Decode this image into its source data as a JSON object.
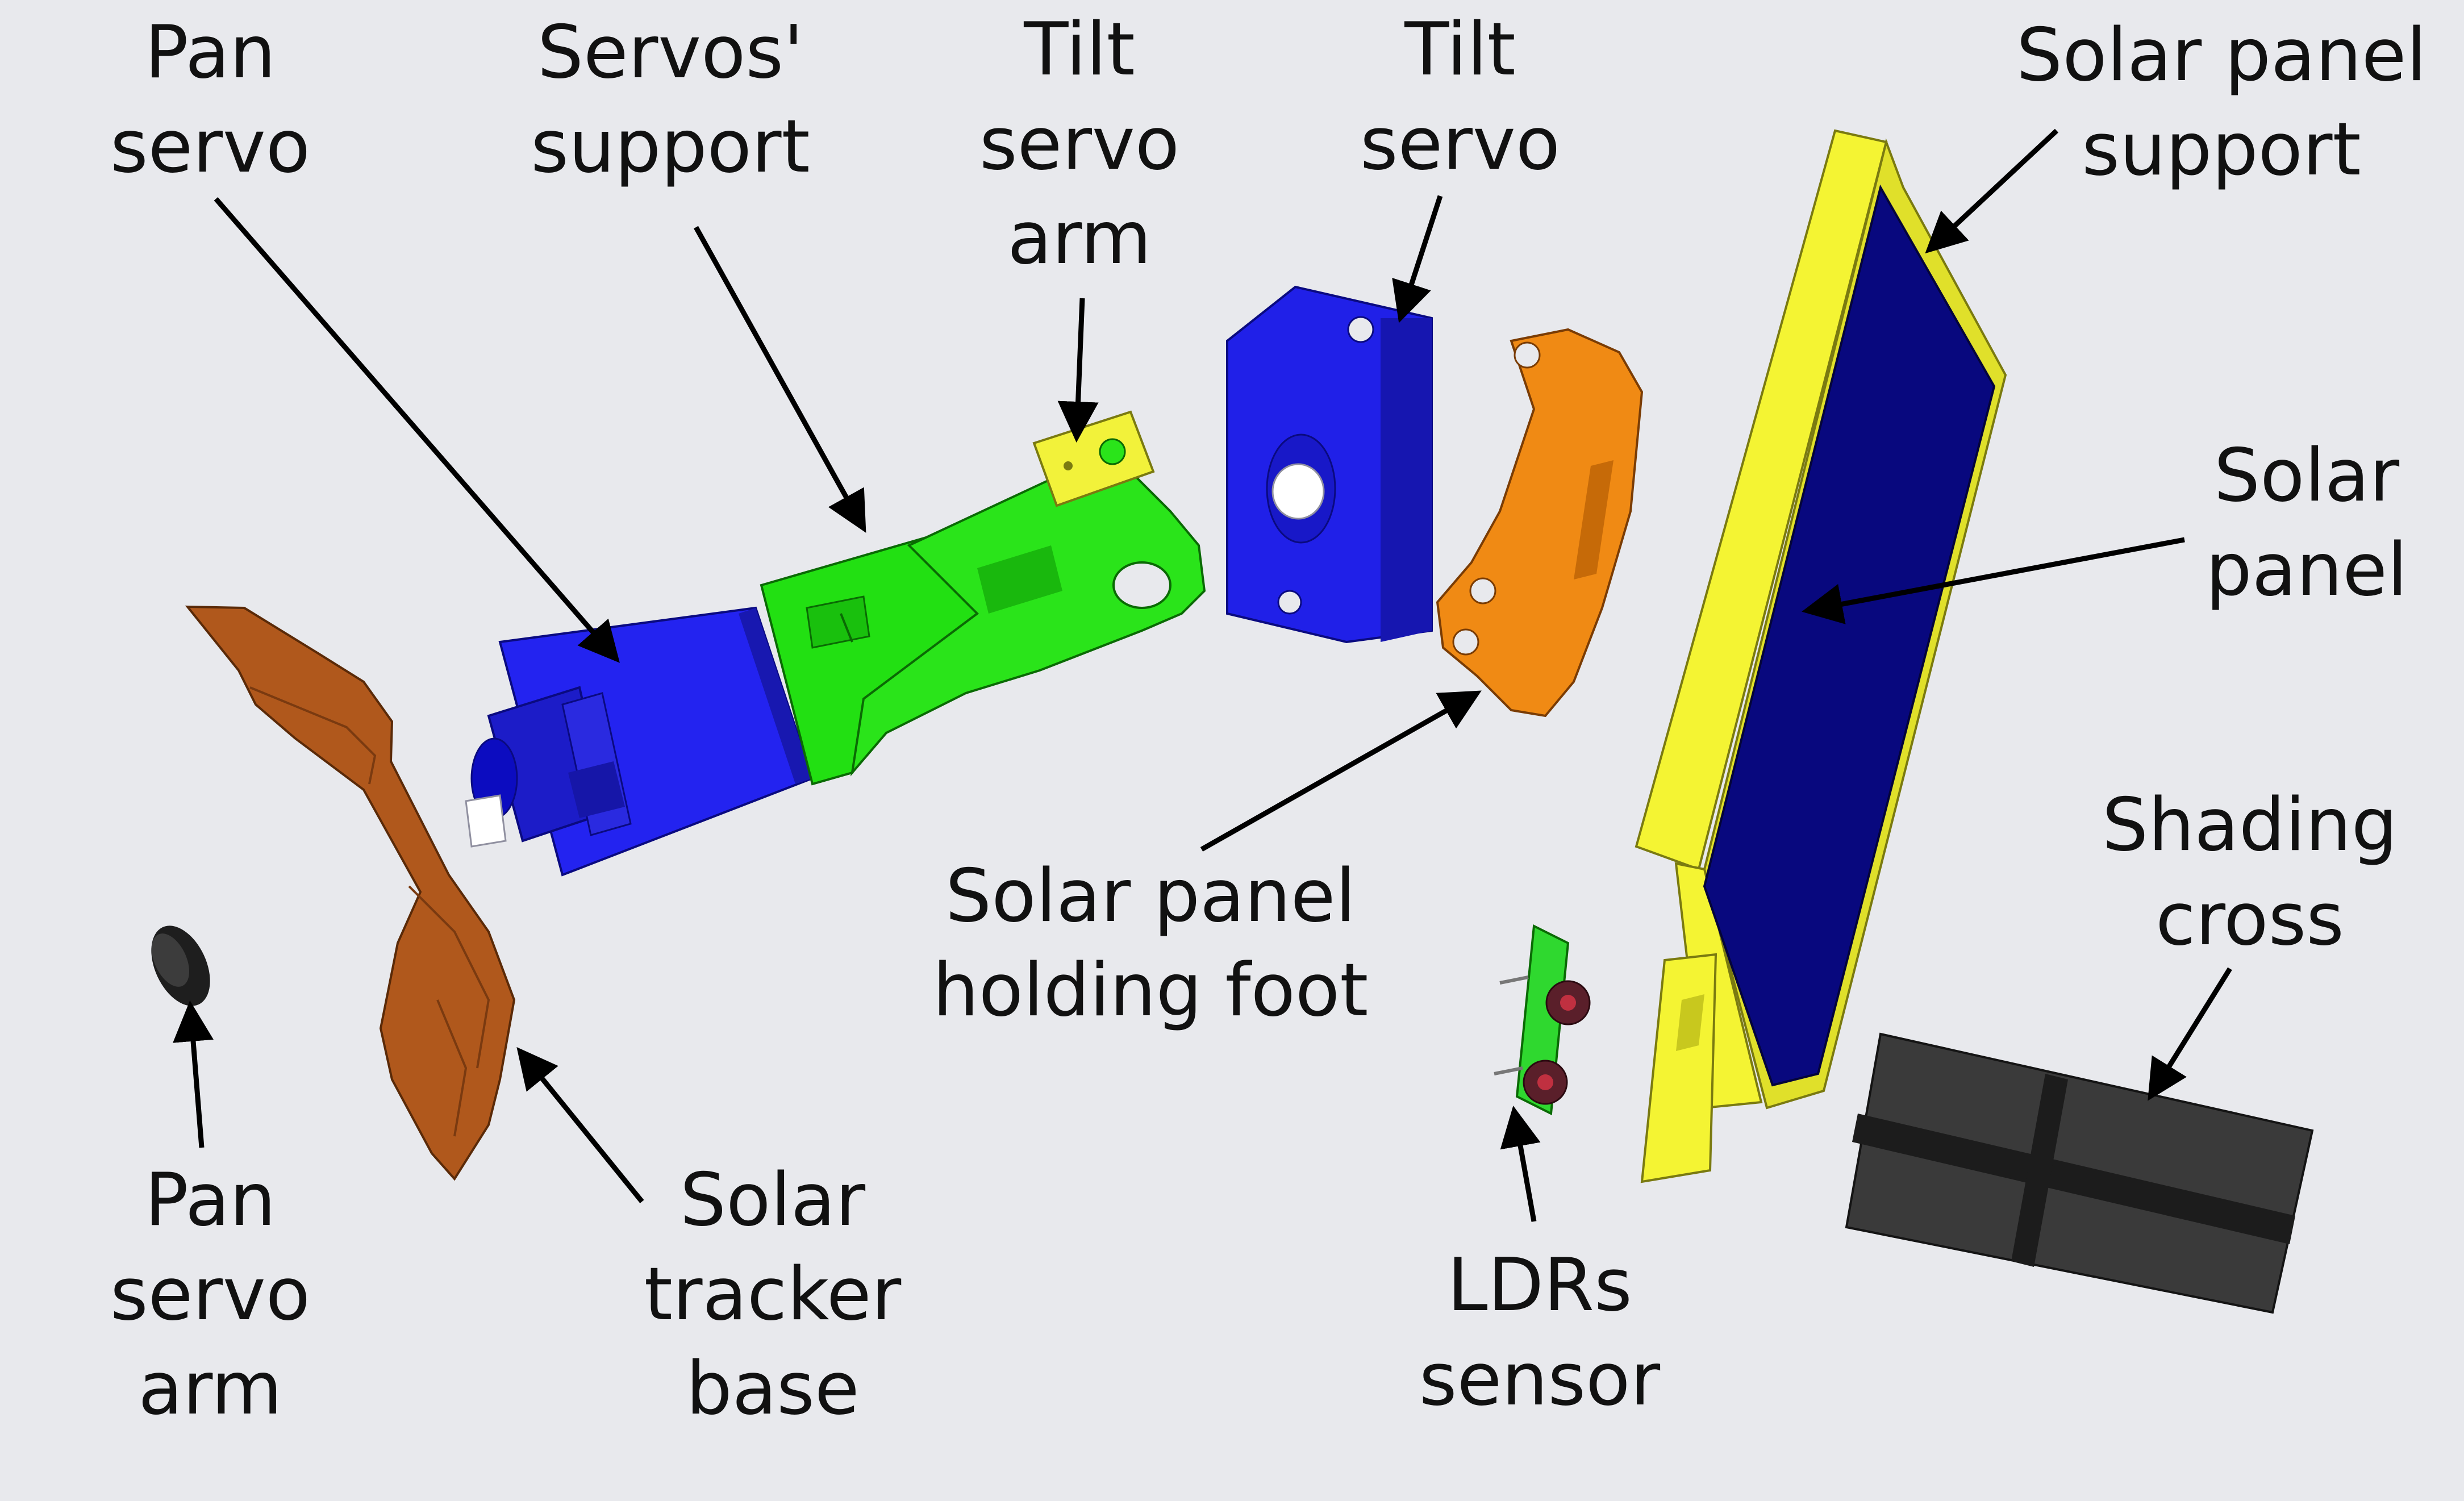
{
  "colors": {
    "background": "#e8e9ed",
    "pan_servo": "#2323f0",
    "servos_support": "#22e012",
    "tilt_servo_arm": "#f2f23a",
    "tilt_servo": "#2020e8",
    "holding_foot": "#f08a14",
    "solar_panel_support": "#f4f433",
    "solar_panel": "#08087e",
    "shading_cross": "#3a3a3a",
    "ldr_board": "#2fd82f",
    "ldr_cells": "#5a1f2a",
    "base": "#b0581c",
    "pan_servo_arm": "#1e1e1e",
    "leader_line": "#000000"
  },
  "labels": {
    "pan_servo": {
      "lines": [
        "Pan",
        "servo"
      ]
    },
    "servos_support": {
      "lines": [
        "Servos'",
        "support"
      ]
    },
    "tilt_servo_arm": {
      "lines": [
        "Tilt",
        "servo",
        "arm"
      ]
    },
    "tilt_servo": {
      "lines": [
        "Tilt",
        "servo"
      ]
    },
    "solar_panel_support": {
      "lines": [
        "Solar panel",
        "support"
      ]
    },
    "solar_panel": {
      "lines": [
        "Solar",
        "panel"
      ]
    },
    "holding_foot": {
      "lines": [
        "Solar panel",
        "holding foot"
      ]
    },
    "shading_cross": {
      "lines": [
        "Shading",
        "cross"
      ]
    },
    "ldrs_sensor": {
      "lines": [
        "LDRs",
        "sensor"
      ]
    },
    "solar_tracker_base": {
      "lines": [
        "Solar",
        "tracker",
        "base"
      ]
    },
    "pan_servo_arm": {
      "lines": [
        "Pan",
        "servo",
        "arm"
      ]
    }
  }
}
